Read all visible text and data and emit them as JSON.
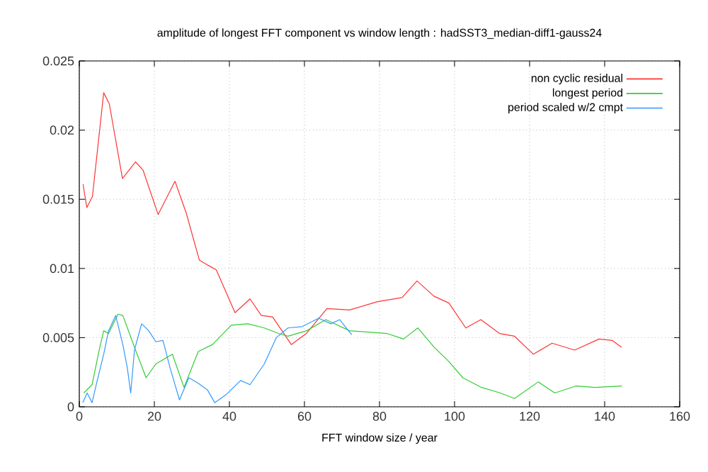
{
  "chart_data": {
    "type": "line",
    "title": "amplitude of longest FFT component vs window length : hadSST3_median-diff1-gauss24",
    "xlabel": "FFT window size / year",
    "xlim": [
      0,
      160
    ],
    "ylim": [
      0,
      0.025
    ],
    "xticks": [
      0,
      20,
      40,
      60,
      80,
      100,
      120,
      140,
      160
    ],
    "yticks": [
      0,
      0.005,
      0.01,
      0.015,
      0.02,
      0.025
    ],
    "grid": true,
    "legend": "top right",
    "line_style": "solid",
    "series": [
      {
        "name": "non cyclic residual",
        "color": "#ff3333",
        "x": [
          1,
          2,
          3.5,
          6.5,
          8,
          11.5,
          15,
          17,
          21,
          25.5,
          28.5,
          32,
          34.5,
          36.5,
          41.5,
          45.5,
          48.5,
          51.5,
          56.5,
          60.5,
          66,
          72,
          79.5,
          86,
          90,
          94.5,
          98.5,
          103,
          107,
          112,
          116,
          121,
          126,
          132,
          138.5,
          142,
          144.5
        ],
        "values": [
          0.0161,
          0.0144,
          0.0152,
          0.0227,
          0.0219,
          0.0165,
          0.0177,
          0.0171,
          0.0139,
          0.0163,
          0.014,
          0.0106,
          0.0102,
          0.0099,
          0.0068,
          0.0078,
          0.0066,
          0.0065,
          0.0045,
          0.0053,
          0.0071,
          0.007,
          0.0076,
          0.0079,
          0.0091,
          0.008,
          0.0075,
          0.0057,
          0.0063,
          0.0053,
          0.0051,
          0.0038,
          0.0046,
          0.0041,
          0.0049,
          0.0048,
          0.0043
        ]
      },
      {
        "name": "longest period",
        "color": "#33cc33",
        "x": [
          1.2,
          3.4,
          5.3,
          6.5,
          7.8,
          10.3,
          11.6,
          14.7,
          17.8,
          20.4,
          24.8,
          27.9,
          31.7,
          35.5,
          40.5,
          44.9,
          49.3,
          53.1,
          55.6,
          60.6,
          65.7,
          72,
          77,
          82,
          86.4,
          90.2,
          94.6,
          98.4,
          102.2,
          107.2,
          112.2,
          116,
          122.3,
          126.7,
          132.3,
          137.4,
          144.6
        ],
        "values": [
          0.001,
          0.0016,
          0.0041,
          0.0055,
          0.0053,
          0.0067,
          0.0066,
          0.0043,
          0.0021,
          0.0031,
          0.0038,
          0.0014,
          0.004,
          0.0045,
          0.0059,
          0.006,
          0.0057,
          0.0053,
          0.0051,
          0.0055,
          0.0063,
          0.0055,
          0.0054,
          0.0053,
          0.0049,
          0.0057,
          0.0043,
          0.0033,
          0.0021,
          0.0014,
          0.001,
          0.0006,
          0.0018,
          0.001,
          0.0015,
          0.0014,
          0.0015
        ]
      },
      {
        "name": "period scaled w/2  cmpt",
        "color": "#3399ff",
        "x": [
          0.9,
          2.1,
          3.4,
          4.6,
          6.5,
          7.8,
          9.7,
          11.6,
          12.8,
          13.7,
          14.7,
          16.6,
          18.5,
          20.4,
          22.3,
          24.2,
          26.7,
          29.2,
          31.7,
          34.2,
          36.1,
          39.2,
          43,
          45.5,
          49.3,
          52.5,
          55.6,
          59.4,
          63.8,
          67,
          69.4,
          72.6
        ],
        "values": [
          0.0003,
          0.001,
          0.0003,
          0.0017,
          0.0038,
          0.0055,
          0.0066,
          0.0045,
          0.0028,
          0.001,
          0.0041,
          0.006,
          0.0055,
          0.0047,
          0.0048,
          0.0028,
          0.0005,
          0.0021,
          0.0017,
          0.0012,
          0.0003,
          0.0009,
          0.0019,
          0.0016,
          0.0031,
          0.005,
          0.0057,
          0.0058,
          0.0064,
          0.006,
          0.0063,
          0.0052
        ]
      }
    ]
  }
}
